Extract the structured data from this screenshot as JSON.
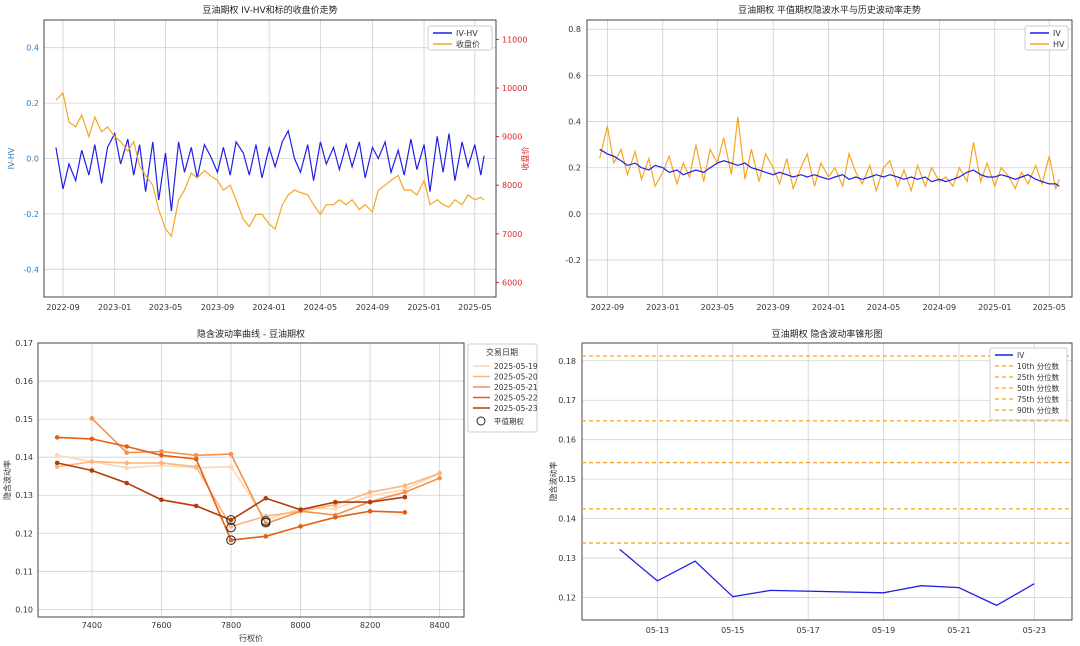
{
  "chart_data": [
    {
      "type": "line",
      "title": "豆油期权 IV-HV和标的收盘价走势",
      "ylabel_left": "IV-HV",
      "ylabel_right": "收盘价",
      "ylim_left": [
        -0.5,
        0.5
      ],
      "ylim_right": [
        5700,
        11400
      ],
      "xlim": [
        "2022-07-18",
        "2025-06-20"
      ],
      "x_ticks": [
        "2022-09",
        "2023-01",
        "2023-05",
        "2023-09",
        "2024-01",
        "2024-05",
        "2024-09",
        "2025-01",
        "2025-05"
      ],
      "y_ticks_left": [
        "0.4",
        "0.2",
        "0.0",
        "-0.2",
        "-0.4"
      ],
      "y_ticks_right": [
        "11000",
        "10000",
        "9000",
        "8000",
        "7000",
        "6000"
      ],
      "grid": true,
      "legend": "top-right",
      "series": [
        {
          "name": "IV-HV",
          "axis": "left",
          "color": "#1f1fe8",
          "x": [
            "2022-08-15",
            "2022-09-01",
            "2022-09-15",
            "2022-10-01",
            "2022-10-15",
            "2022-11-01",
            "2022-11-15",
            "2022-12-01",
            "2022-12-15",
            "2023-01-01",
            "2023-01-15",
            "2023-02-01",
            "2023-02-15",
            "2023-03-01",
            "2023-03-15",
            "2023-04-01",
            "2023-04-15",
            "2023-05-01",
            "2023-05-15",
            "2023-06-01",
            "2023-06-15",
            "2023-07-01",
            "2023-07-15",
            "2023-08-01",
            "2023-08-15",
            "2023-09-01",
            "2023-09-15",
            "2023-10-01",
            "2023-10-15",
            "2023-11-01",
            "2023-11-15",
            "2023-12-01",
            "2023-12-15",
            "2024-01-01",
            "2024-01-15",
            "2024-02-01",
            "2024-02-15",
            "2024-03-01",
            "2024-03-15",
            "2024-04-01",
            "2024-04-15",
            "2024-05-01",
            "2024-05-15",
            "2024-06-01",
            "2024-06-15",
            "2024-07-01",
            "2024-07-15",
            "2024-08-01",
            "2024-08-15",
            "2024-09-01",
            "2024-09-15",
            "2024-10-01",
            "2024-10-15",
            "2024-11-01",
            "2024-11-15",
            "2024-12-01",
            "2024-12-15",
            "2025-01-01",
            "2025-01-15",
            "2025-02-01",
            "2025-02-15",
            "2025-03-01",
            "2025-03-15",
            "2025-04-01",
            "2025-04-15",
            "2025-05-01",
            "2025-05-15",
            "2025-05-23"
          ],
          "values": [
            0.04,
            -0.11,
            -0.02,
            -0.08,
            0.03,
            -0.06,
            0.05,
            -0.09,
            0.04,
            0.09,
            -0.02,
            0.07,
            -0.06,
            0.05,
            -0.12,
            0.06,
            -0.15,
            0.02,
            -0.19,
            0.06,
            -0.05,
            0.04,
            -0.07,
            0.05,
            0.01,
            -0.05,
            0.04,
            -0.06,
            0.06,
            0.02,
            -0.06,
            0.05,
            -0.07,
            0.04,
            -0.03,
            0.06,
            0.1,
            0.0,
            -0.05,
            0.05,
            -0.08,
            0.06,
            -0.02,
            0.04,
            -0.04,
            0.05,
            -0.03,
            0.06,
            -0.07,
            0.04,
            0.0,
            0.06,
            -0.05,
            0.03,
            -0.06,
            0.07,
            -0.04,
            0.05,
            -0.12,
            0.08,
            -0.05,
            0.09,
            -0.08,
            0.06,
            -0.03,
            0.05,
            -0.06,
            0.01
          ]
        },
        {
          "name": "收盘价",
          "axis": "right",
          "color": "#f5a623",
          "x": [
            "2022-08-15",
            "2022-09-01",
            "2022-09-15",
            "2022-10-01",
            "2022-10-15",
            "2022-11-01",
            "2022-11-15",
            "2022-12-01",
            "2022-12-15",
            "2023-01-01",
            "2023-01-15",
            "2023-02-01",
            "2023-02-15",
            "2023-03-01",
            "2023-03-15",
            "2023-04-01",
            "2023-04-15",
            "2023-05-01",
            "2023-05-15",
            "2023-06-01",
            "2023-06-15",
            "2023-07-01",
            "2023-07-15",
            "2023-08-01",
            "2023-08-15",
            "2023-09-01",
            "2023-09-15",
            "2023-10-01",
            "2023-10-15",
            "2023-11-01",
            "2023-11-15",
            "2023-12-01",
            "2023-12-15",
            "2024-01-01",
            "2024-01-15",
            "2024-02-01",
            "2024-02-15",
            "2024-03-01",
            "2024-03-15",
            "2024-04-01",
            "2024-04-15",
            "2024-05-01",
            "2024-05-15",
            "2024-06-01",
            "2024-06-15",
            "2024-07-01",
            "2024-07-15",
            "2024-08-01",
            "2024-08-15",
            "2024-09-01",
            "2024-09-15",
            "2024-10-01",
            "2024-10-15",
            "2024-11-01",
            "2024-11-15",
            "2024-12-01",
            "2024-12-15",
            "2025-01-01",
            "2025-01-15",
            "2025-02-01",
            "2025-02-15",
            "2025-03-01",
            "2025-03-15",
            "2025-04-01",
            "2025-04-15",
            "2025-05-01",
            "2025-05-15",
            "2025-05-23"
          ],
          "values": [
            9750,
            9900,
            9300,
            9200,
            9450,
            9000,
            9400,
            9100,
            9200,
            9000,
            8900,
            8700,
            8900,
            8400,
            8200,
            8000,
            7500,
            7100,
            6950,
            7700,
            7900,
            8250,
            8150,
            8300,
            8200,
            8100,
            7900,
            8000,
            7700,
            7300,
            7150,
            7400,
            7400,
            7200,
            7100,
            7600,
            7800,
            7900,
            7850,
            7800,
            7600,
            7400,
            7600,
            7600,
            7700,
            7600,
            7700,
            7500,
            7600,
            7450,
            7900,
            8000,
            8100,
            8200,
            7900,
            7900,
            7800,
            8100,
            7600,
            7700,
            7600,
            7550,
            7700,
            7600,
            7800,
            7700,
            7750,
            7700
          ]
        }
      ]
    },
    {
      "type": "line",
      "title": "豆油期权 平值期权隐波水平与历史波动率走势",
      "ylim": [
        -0.36,
        0.84
      ],
      "xlim": [
        "2022-07-18",
        "2025-06-20"
      ],
      "x_ticks": [
        "2022-09",
        "2023-01",
        "2023-05",
        "2023-09",
        "2024-01",
        "2024-05",
        "2024-09",
        "2025-01",
        "2025-05"
      ],
      "y_ticks": [
        "0.8",
        "0.6",
        "0.4",
        "0.2",
        "0.0",
        "-0.2"
      ],
      "grid": true,
      "legend": "top-right",
      "series": [
        {
          "name": "IV",
          "color": "#1f1fe8",
          "x": [
            "2022-08-15",
            "2022-09-01",
            "2022-09-15",
            "2022-10-01",
            "2022-10-15",
            "2022-11-01",
            "2022-11-15",
            "2022-12-01",
            "2022-12-15",
            "2023-01-01",
            "2023-01-15",
            "2023-02-01",
            "2023-02-15",
            "2023-03-01",
            "2023-03-15",
            "2023-04-01",
            "2023-04-15",
            "2023-05-01",
            "2023-05-15",
            "2023-06-01",
            "2023-06-15",
            "2023-07-01",
            "2023-07-15",
            "2023-08-01",
            "2023-08-15",
            "2023-09-01",
            "2023-09-15",
            "2023-10-01",
            "2023-10-15",
            "2023-11-01",
            "2023-11-15",
            "2023-12-01",
            "2023-12-15",
            "2024-01-01",
            "2024-01-15",
            "2024-02-01",
            "2024-02-15",
            "2024-03-01",
            "2024-03-15",
            "2024-04-01",
            "2024-04-15",
            "2024-05-01",
            "2024-05-15",
            "2024-06-01",
            "2024-06-15",
            "2024-07-01",
            "2024-07-15",
            "2024-08-01",
            "2024-08-15",
            "2024-09-01",
            "2024-09-15",
            "2024-10-01",
            "2024-10-15",
            "2024-11-01",
            "2024-11-15",
            "2024-12-01",
            "2024-12-15",
            "2025-01-01",
            "2025-01-15",
            "2025-02-01",
            "2025-02-15",
            "2025-03-01",
            "2025-03-15",
            "2025-04-01",
            "2025-04-15",
            "2025-05-01",
            "2025-05-15",
            "2025-05-23"
          ],
          "values": [
            0.28,
            0.26,
            0.25,
            0.23,
            0.21,
            0.22,
            0.2,
            0.19,
            0.21,
            0.2,
            0.18,
            0.19,
            0.17,
            0.18,
            0.19,
            0.18,
            0.2,
            0.22,
            0.23,
            0.22,
            0.21,
            0.22,
            0.2,
            0.19,
            0.18,
            0.17,
            0.18,
            0.17,
            0.16,
            0.17,
            0.16,
            0.17,
            0.16,
            0.15,
            0.16,
            0.17,
            0.15,
            0.16,
            0.15,
            0.16,
            0.17,
            0.16,
            0.17,
            0.16,
            0.15,
            0.16,
            0.15,
            0.16,
            0.14,
            0.15,
            0.14,
            0.15,
            0.16,
            0.18,
            0.19,
            0.17,
            0.16,
            0.16,
            0.17,
            0.16,
            0.15,
            0.16,
            0.17,
            0.15,
            0.14,
            0.13,
            0.13,
            0.12
          ]
        },
        {
          "name": "HV",
          "color": "#f5a623",
          "x": [
            "2022-08-15",
            "2022-09-01",
            "2022-09-15",
            "2022-10-01",
            "2022-10-15",
            "2022-11-01",
            "2022-11-15",
            "2022-12-01",
            "2022-12-15",
            "2023-01-01",
            "2023-01-15",
            "2023-02-01",
            "2023-02-15",
            "2023-03-01",
            "2023-03-15",
            "2023-04-01",
            "2023-04-15",
            "2023-05-01",
            "2023-05-15",
            "2023-06-01",
            "2023-06-15",
            "2023-07-01",
            "2023-07-15",
            "2023-08-01",
            "2023-08-15",
            "2023-09-01",
            "2023-09-15",
            "2023-10-01",
            "2023-10-15",
            "2023-11-01",
            "2023-11-15",
            "2023-12-01",
            "2023-12-15",
            "2024-01-01",
            "2024-01-15",
            "2024-02-01",
            "2024-02-15",
            "2024-03-01",
            "2024-03-15",
            "2024-04-01",
            "2024-04-15",
            "2024-05-01",
            "2024-05-15",
            "2024-06-01",
            "2024-06-15",
            "2024-07-01",
            "2024-07-15",
            "2024-08-01",
            "2024-08-15",
            "2024-09-01",
            "2024-09-15",
            "2024-10-01",
            "2024-10-15",
            "2024-11-01",
            "2024-11-15",
            "2024-12-01",
            "2024-12-15",
            "2025-01-01",
            "2025-01-15",
            "2025-02-01",
            "2025-02-15",
            "2025-03-01",
            "2025-03-15",
            "2025-04-01",
            "2025-04-15",
            "2025-05-01",
            "2025-05-15",
            "2025-05-23"
          ],
          "values": [
            0.24,
            0.38,
            0.22,
            0.28,
            0.17,
            0.27,
            0.15,
            0.24,
            0.12,
            0.18,
            0.25,
            0.13,
            0.22,
            0.16,
            0.3,
            0.14,
            0.28,
            0.22,
            0.33,
            0.17,
            0.42,
            0.15,
            0.28,
            0.14,
            0.26,
            0.2,
            0.13,
            0.24,
            0.11,
            0.2,
            0.26,
            0.12,
            0.22,
            0.16,
            0.2,
            0.12,
            0.26,
            0.18,
            0.13,
            0.21,
            0.1,
            0.2,
            0.23,
            0.12,
            0.19,
            0.1,
            0.21,
            0.12,
            0.2,
            0.14,
            0.16,
            0.12,
            0.2,
            0.14,
            0.31,
            0.14,
            0.22,
            0.12,
            0.2,
            0.16,
            0.11,
            0.18,
            0.13,
            0.21,
            0.13,
            0.25,
            0.11,
            0.15
          ]
        }
      ]
    },
    {
      "type": "line",
      "title": "隐含波动率曲线 - 豆油期权",
      "xlabel": "行权价",
      "ylabel": "隐含波动率",
      "xlim": [
        7245,
        8470
      ],
      "ylim": [
        0.098,
        0.17
      ],
      "x_ticks": [
        7400,
        7600,
        7800,
        8000,
        8200,
        8400
      ],
      "y_ticks": [
        "0.10",
        "0.11",
        "0.12",
        "0.13",
        "0.14",
        "0.15",
        "0.16",
        "0.17"
      ],
      "grid": true,
      "legend_title": "交易日期",
      "legend": "top-right-outside",
      "atm_label": "平值期权",
      "series": [
        {
          "name": "2025-05-19",
          "color": "#fdd7b0",
          "x": [
            7300,
            7400,
            7500,
            7600,
            7700,
            7800,
            7900,
            8000,
            8100,
            8200,
            8300,
            8400
          ],
          "values": [
            0.1405,
            0.1388,
            0.1372,
            0.1378,
            0.1372,
            0.1375,
            0.1235,
            0.1265,
            0.1265,
            0.1298,
            0.1315,
            0.1358
          ]
        },
        {
          "name": "2025-05-20",
          "color": "#fbb57f",
          "x": [
            7300,
            7400,
            7500,
            7600,
            7700,
            7800,
            7900,
            8000,
            8100,
            8200,
            8300,
            8400
          ],
          "values": [
            0.1375,
            0.1388,
            0.1385,
            0.1385,
            0.1375,
            0.1218,
            0.1245,
            0.1258,
            0.1275,
            0.1308,
            0.1325,
            0.1358
          ]
        },
        {
          "name": "2025-05-21",
          "color": "#f5914e",
          "x": [
            7400,
            7500,
            7600,
            7700,
            7800,
            7900,
            8000,
            8100,
            8200,
            8300,
            8400
          ],
          "values": [
            0.1502,
            0.1412,
            0.1415,
            0.1405,
            0.1408,
            0.1225,
            0.1258,
            0.1248,
            0.1283,
            0.1308,
            0.1345
          ]
        },
        {
          "name": "2025-05-22",
          "color": "#e35f13",
          "x": [
            7300,
            7400,
            7500,
            7600,
            7700,
            7800,
            7900,
            8000,
            8100,
            8200,
            8300
          ],
          "values": [
            0.1452,
            0.1448,
            0.1428,
            0.1405,
            0.1395,
            0.1182,
            0.1192,
            0.1218,
            0.1242,
            0.1258,
            0.1255
          ]
        },
        {
          "name": "2025-05-23",
          "color": "#b13c07",
          "x": [
            7300,
            7400,
            7500,
            7600,
            7700,
            7800,
            7900,
            8000,
            8100,
            8200,
            8300
          ],
          "values": [
            0.1385,
            0.1365,
            0.1332,
            0.1288,
            0.1272,
            0.1235,
            0.1292,
            0.1262,
            0.1282,
            0.1282,
            0.1295
          ]
        }
      ],
      "atm_points": [
        {
          "x": 7800,
          "y": 0.1235
        },
        {
          "x": 7800,
          "y": 0.1215
        },
        {
          "x": 7800,
          "y": 0.1182
        },
        {
          "x": 7900,
          "y": 0.1232
        },
        {
          "x": 7900,
          "y": 0.1228
        }
      ]
    },
    {
      "type": "line",
      "title": "豆油期权 隐含波动率锥形图",
      "ylabel": "隐含波动率",
      "xlim": [
        "2025-05-11",
        "2025-05-24"
      ],
      "ylim": [
        0.1143,
        0.1845
      ],
      "x_ticks": [
        "05-13",
        "05-15",
        "05-17",
        "05-19",
        "05-21",
        "05-23"
      ],
      "y_ticks": [
        "0.12",
        "0.13",
        "0.14",
        "0.15",
        "0.16",
        "0.17",
        "0.18"
      ],
      "grid": true,
      "legend": "top-right",
      "series": [
        {
          "name": "IV",
          "color": "#1f1fe8",
          "x": [
            "2025-05-12",
            "2025-05-13",
            "2025-05-14",
            "2025-05-15",
            "2025-05-16",
            "2025-05-19",
            "2025-05-20",
            "2025-05-21",
            "2025-05-22",
            "2025-05-23"
          ],
          "values": [
            0.1322,
            0.1242,
            0.1292,
            0.1202,
            0.1218,
            0.1212,
            0.123,
            0.1225,
            0.118,
            0.1235
          ]
        }
      ],
      "percentiles": [
        {
          "name": "10th 分位数",
          "value": 0.1338
        },
        {
          "name": "25th 分位数",
          "value": 0.1425
        },
        {
          "name": "50th 分位数",
          "value": 0.1542
        },
        {
          "name": "75th 分位数",
          "value": 0.1648
        },
        {
          "name": "90th 分位数",
          "value": 0.1812
        }
      ],
      "percentile_color": "#f5a623"
    }
  ]
}
